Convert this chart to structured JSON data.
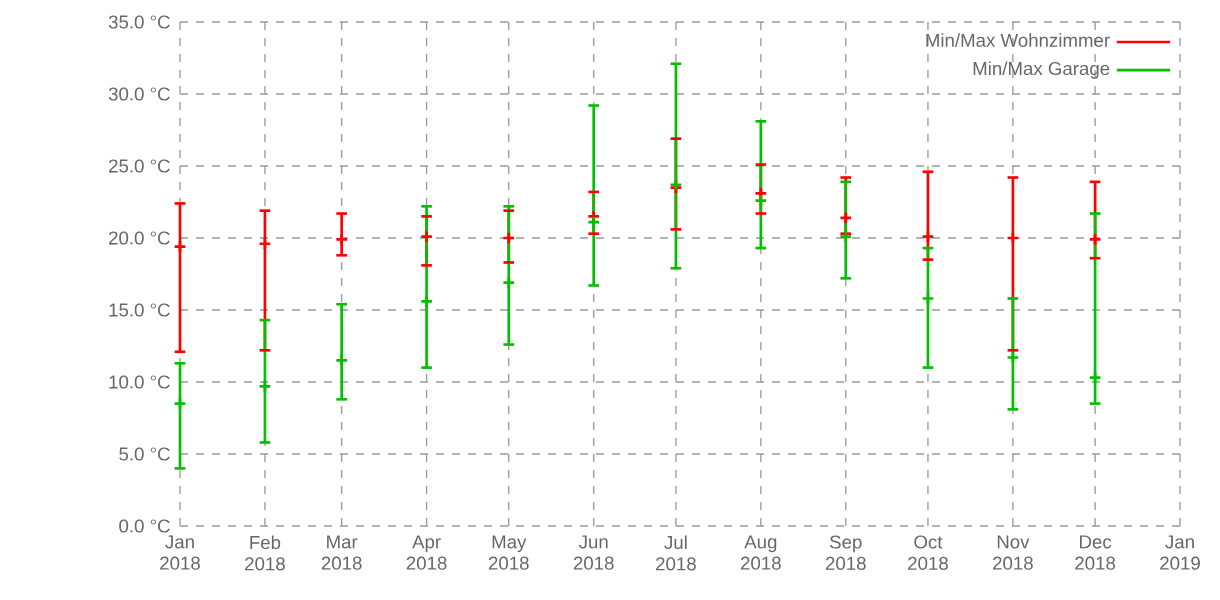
{
  "chart_data": {
    "type": "scatter",
    "x": [
      "2018-01-01",
      "2018-02-01",
      "2018-03-01",
      "2018-04-01",
      "2018-05-01",
      "2018-06-01",
      "2018-07-01",
      "2018-08-01",
      "2018-09-01",
      "2018-10-01",
      "2018-11-01",
      "2018-12-01"
    ],
    "series": [
      {
        "name": "Min/Max Wohnzimmer",
        "color": "#ff0000",
        "values": [
          19.4,
          19.6,
          19.9,
          20.1,
          20.0,
          21.5,
          23.5,
          23.1,
          21.4,
          20.1,
          20.0,
          19.9
        ],
        "errors": [
          [
            12.1,
            22.4
          ],
          [
            12.2,
            21.9
          ],
          [
            18.8,
            21.7
          ],
          [
            18.1,
            21.5
          ],
          [
            18.3,
            21.9
          ],
          [
            20.3,
            23.2
          ],
          [
            20.6,
            26.9
          ],
          [
            21.7,
            25.1
          ],
          [
            20.3,
            24.2
          ],
          [
            18.5,
            24.6
          ],
          [
            12.2,
            24.2
          ],
          [
            18.6,
            23.9
          ]
        ]
      },
      {
        "name": "Min/Max Garage",
        "color": "#00c000",
        "values": [
          8.5,
          9.7,
          11.5,
          15.6,
          16.9,
          21.1,
          23.7,
          22.6,
          20.1,
          15.8,
          11.7,
          10.3
        ],
        "errors": [
          [
            4.0,
            11.3
          ],
          [
            5.8,
            14.3
          ],
          [
            8.8,
            15.4
          ],
          [
            11.0,
            22.2
          ],
          [
            12.6,
            22.2
          ],
          [
            16.7,
            29.2
          ],
          [
            17.9,
            32.1
          ],
          [
            19.3,
            28.1
          ],
          [
            17.2,
            23.9
          ],
          [
            11.0,
            19.3
          ],
          [
            8.1,
            15.8
          ],
          [
            8.5,
            21.7
          ]
        ]
      }
    ],
    "xlim": [
      "2018-01-01",
      "2019-01-01"
    ],
    "xticks": [
      {
        "value": "2018-01-01",
        "label": "Jan 2018"
      },
      {
        "value": "2018-02-01",
        "label": "Feb 2018"
      },
      {
        "value": "2018-03-01",
        "label": "Mar 2018"
      },
      {
        "value": "2018-04-01",
        "label": "Apr 2018"
      },
      {
        "value": "2018-05-01",
        "label": "May 2018"
      },
      {
        "value": "2018-06-01",
        "label": "Jun 2018"
      },
      {
        "value": "2018-07-01",
        "label": "Jul 2018"
      },
      {
        "value": "2018-08-01",
        "label": "Aug 2018"
      },
      {
        "value": "2018-09-01",
        "label": "Sep 2018"
      },
      {
        "value": "2018-10-01",
        "label": "Oct 2018"
      },
      {
        "value": "2018-11-01",
        "label": "Nov 2018"
      },
      {
        "value": "2018-12-01",
        "label": "Dec 2018"
      },
      {
        "value": "2019-01-01",
        "label": "Jan 2019"
      }
    ],
    "ylim": [
      0,
      35
    ],
    "yticks": [
      {
        "value": 0,
        "label": "0.0 °C"
      },
      {
        "value": 5,
        "label": "5.0 °C"
      },
      {
        "value": 10,
        "label": "10.0 °C"
      },
      {
        "value": 15,
        "label": "15.0 °C"
      },
      {
        "value": 20,
        "label": "20.0 °C"
      },
      {
        "value": 25,
        "label": "25.0 °C"
      },
      {
        "value": 30,
        "label": "30.0 °C"
      },
      {
        "value": 35,
        "label": "35.0 °C"
      }
    ],
    "grid": true,
    "marker": "cross",
    "legend": "top right"
  }
}
